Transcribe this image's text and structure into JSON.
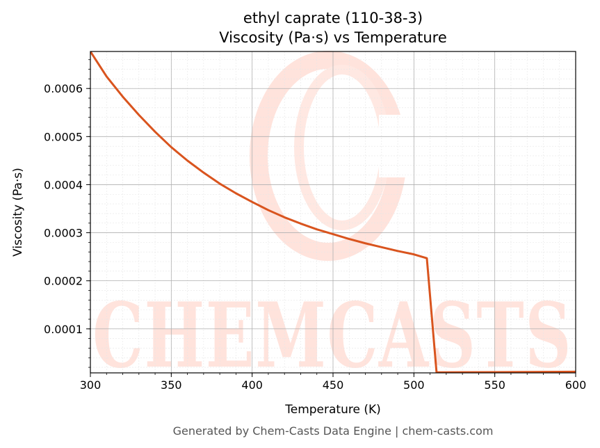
{
  "chart_data": {
    "type": "line",
    "title": "ethyl caprate (110-38-3)",
    "subtitle": "Viscosity (Pa·s) vs Temperature",
    "xlabel": "Temperature (K)",
    "ylabel": "Viscosity (Pa·s)",
    "xlim": [
      300,
      600
    ],
    "ylim": [
      8.5e-06,
      0.000677
    ],
    "x_ticks": [
      300,
      350,
      400,
      450,
      500,
      550,
      600
    ],
    "x_tick_labels": [
      "300",
      "350",
      "400",
      "450",
      "500",
      "550",
      "600"
    ],
    "y_ticks": [
      0.0001,
      0.0002,
      0.0003,
      0.0004,
      0.0005,
      0.0006
    ],
    "y_tick_labels": [
      "0.0001",
      "0.0002",
      "0.0003",
      "0.0004",
      "0.0005",
      "0.0006"
    ],
    "grid": true,
    "minor_grid": true,
    "series": [
      {
        "color": "#d9541e",
        "x": [
          300,
          310,
          320,
          330,
          340,
          350,
          360,
          370,
          380,
          390,
          400,
          410,
          420,
          430,
          440,
          450,
          460,
          470,
          480,
          490,
          500,
          508,
          514,
          530,
          550,
          570,
          600
        ],
        "y": [
          0.000677,
          0.000625,
          0.000583,
          0.000545,
          0.00051,
          0.000478,
          0.00045,
          0.000425,
          0.000402,
          0.000382,
          0.000364,
          0.000347,
          0.000332,
          0.000319,
          0.000307,
          0.000297,
          0.000287,
          0.000278,
          0.00027,
          0.000262,
          0.000255,
          0.000247,
          9.5e-06,
          9.7e-06,
          1e-05,
          1.03e-05,
          1.08e-05
        ]
      }
    ]
  },
  "watermark": {
    "text": "CHEMCASTS",
    "color": "#ffe3dc"
  },
  "footer": "Generated by Chem-Casts Data Engine | chem-casts.com"
}
